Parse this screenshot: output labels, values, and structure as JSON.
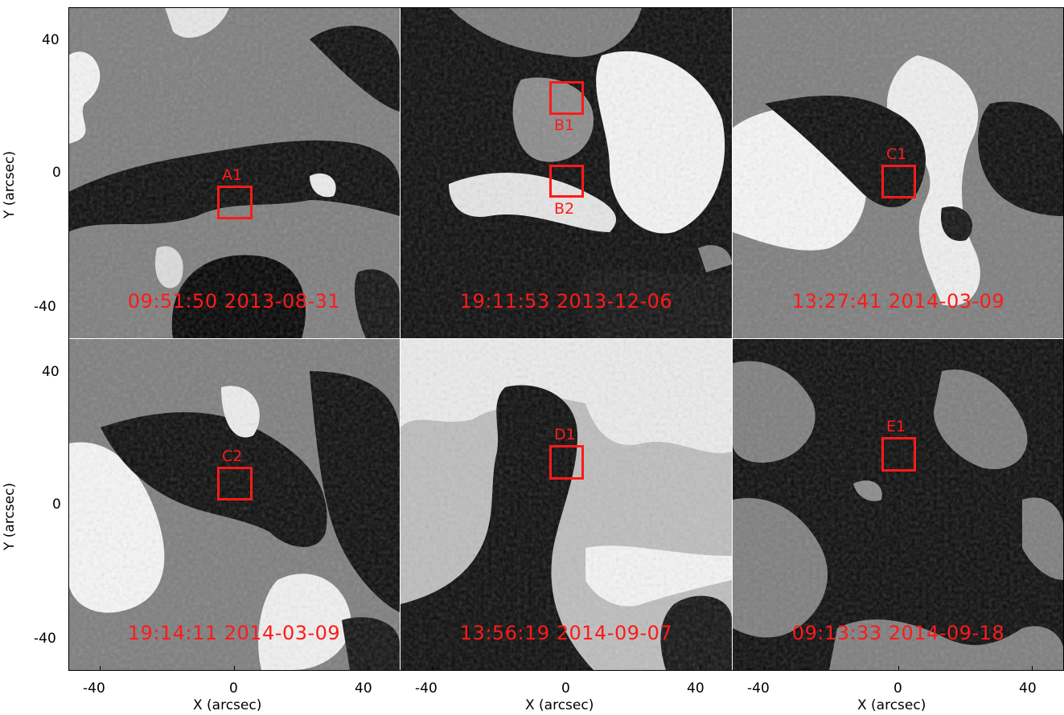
{
  "figure": {
    "x_axis_title": "X (arcsec)",
    "y_axis_title": "Y (arcsec)",
    "x_tick_labels": [
      "-40",
      "0",
      "40"
    ],
    "y_tick_labels": [
      "40",
      "0",
      "-40"
    ],
    "annotation_color": "#ff1a1a",
    "panels": [
      {
        "timestamp": "09:51:50  2013-08-31",
        "boxes": [
          {
            "label": "A1"
          }
        ]
      },
      {
        "timestamp": "19:11:53  2013-12-06",
        "boxes": [
          {
            "label": "B1"
          },
          {
            "label": "B2"
          }
        ]
      },
      {
        "timestamp": "13:27:41  2014-03-09",
        "boxes": [
          {
            "label": "C1"
          }
        ]
      },
      {
        "timestamp": "19:14:11  2014-03-09",
        "boxes": [
          {
            "label": "C2"
          }
        ]
      },
      {
        "timestamp": "13:56:19  2014-09-07",
        "boxes": [
          {
            "label": "D1"
          }
        ]
      },
      {
        "timestamp": "09:13:33  2014-09-18",
        "boxes": [
          {
            "label": "E1"
          }
        ]
      }
    ]
  }
}
